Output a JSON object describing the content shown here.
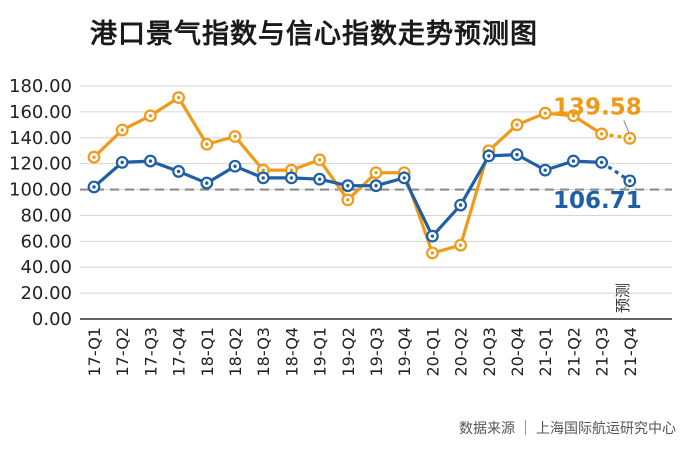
{
  "title": "港口景气指数与信心指数走势预测图",
  "source": {
    "label": "数据来源",
    "name": "上海国际航运研究中心"
  },
  "chart_data": {
    "type": "line",
    "title": "港口景气指数与信心指数走势预测图",
    "xlabel": "",
    "ylabel": "",
    "categories": [
      "17-Q1",
      "17-Q2",
      "17-Q3",
      "17-Q4",
      "18-Q1",
      "18-Q2",
      "18-Q3",
      "18-Q4",
      "19-Q1",
      "19-Q2",
      "19-Q3",
      "19-Q4",
      "20-Q1",
      "20-Q2",
      "20-Q3",
      "20-Q4",
      "21-Q1",
      "21-Q2",
      "21-Q3",
      "21-Q4"
    ],
    "yticks": [
      "0.00",
      "20.00",
      "40.00",
      "60.00",
      "80.00",
      "100.00",
      "120.00",
      "140.00",
      "160.00",
      "180.00"
    ],
    "ylim": [
      0,
      180
    ],
    "reference_line": 100,
    "forecast_label": "预测",
    "series": [
      {
        "color": "#f09a1a",
        "values": [
          125,
          146,
          157,
          171,
          135,
          141,
          115,
          115,
          123,
          92,
          113,
          113,
          51,
          57,
          130,
          150,
          159,
          157,
          143,
          139.58
        ],
        "end_label": "139.58"
      },
      {
        "color": "#1f5fa6",
        "values": [
          102,
          121,
          122,
          114,
          105,
          118,
          109,
          109,
          108,
          103,
          103,
          109,
          64,
          88,
          126,
          127,
          115,
          122,
          121,
          106.71
        ],
        "end_label": "106.71"
      }
    ],
    "grid": true,
    "legend": "none"
  }
}
